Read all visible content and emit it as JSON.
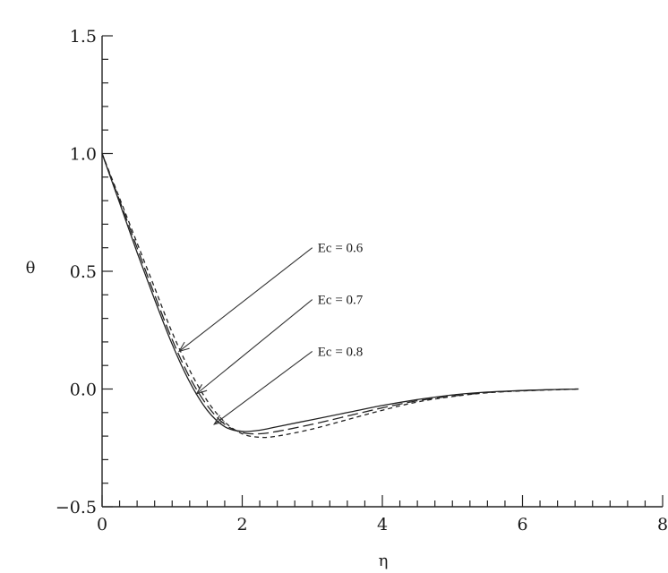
{
  "chart_data": {
    "type": "line",
    "title": "",
    "xlabel": "η",
    "ylabel": "θ",
    "xlim": [
      0,
      8
    ],
    "ylim": [
      -0.5,
      1.5
    ],
    "x_ticks": [
      0,
      2,
      4,
      6,
      8
    ],
    "x_tick_labels": [
      "0",
      "2",
      "4",
      "6",
      "8"
    ],
    "y_ticks": [
      -0.5,
      0.0,
      0.5,
      1.0,
      1.5
    ],
    "y_tick_labels": [
      "−0.5",
      "0.0",
      "0.5",
      "1.0",
      "1.5"
    ],
    "grid": false,
    "series": [
      {
        "name": "Ec = 0.6",
        "style": "solid",
        "x": [
          0,
          0.25,
          0.5,
          0.75,
          1.0,
          1.25,
          1.5,
          1.75,
          2.0,
          2.25,
          2.5,
          3.0,
          3.5,
          4.0,
          4.5,
          5.0,
          5.5,
          6.0,
          6.5,
          6.8
        ],
        "y": [
          1.0,
          0.79,
          0.58,
          0.38,
          0.19,
          0.03,
          -0.09,
          -0.16,
          -0.18,
          -0.175,
          -0.16,
          -0.13,
          -0.1,
          -0.07,
          -0.045,
          -0.025,
          -0.013,
          -0.006,
          -0.002,
          0.0
        ]
      },
      {
        "name": "Ec = 0.7",
        "style": "long-dash",
        "x": [
          0,
          0.25,
          0.5,
          0.75,
          1.0,
          1.25,
          1.5,
          1.75,
          2.0,
          2.25,
          2.5,
          3.0,
          3.5,
          4.0,
          4.5,
          5.0,
          5.5,
          6.0,
          6.5,
          6.8
        ],
        "y": [
          1.0,
          0.8,
          0.6,
          0.4,
          0.21,
          0.05,
          -0.07,
          -0.15,
          -0.185,
          -0.19,
          -0.18,
          -0.15,
          -0.115,
          -0.08,
          -0.05,
          -0.03,
          -0.015,
          -0.007,
          -0.002,
          0.0
        ]
      },
      {
        "name": "Ec = 0.8",
        "style": "short-dash",
        "x": [
          0,
          0.25,
          0.5,
          0.75,
          1.0,
          1.25,
          1.5,
          1.75,
          2.0,
          2.25,
          2.5,
          3.0,
          3.5,
          4.0,
          4.5,
          5.0,
          5.5,
          6.0,
          6.5,
          6.8
        ],
        "y": [
          1.0,
          0.81,
          0.62,
          0.43,
          0.24,
          0.08,
          -0.05,
          -0.14,
          -0.19,
          -0.205,
          -0.2,
          -0.17,
          -0.13,
          -0.09,
          -0.055,
          -0.032,
          -0.016,
          -0.008,
          -0.003,
          0.0
        ]
      }
    ],
    "annotations": [
      {
        "text": "Ec = 0.6",
        "x": 3.0,
        "y": 0.6,
        "arrow_to": [
          1.1,
          0.16
        ]
      },
      {
        "text": "Ec = 0.7",
        "x": 3.0,
        "y": 0.38,
        "arrow_to": [
          1.35,
          -0.02
        ]
      },
      {
        "text": "Ec = 0.8",
        "x": 3.0,
        "y": 0.16,
        "arrow_to": [
          1.6,
          -0.15
        ]
      }
    ]
  }
}
